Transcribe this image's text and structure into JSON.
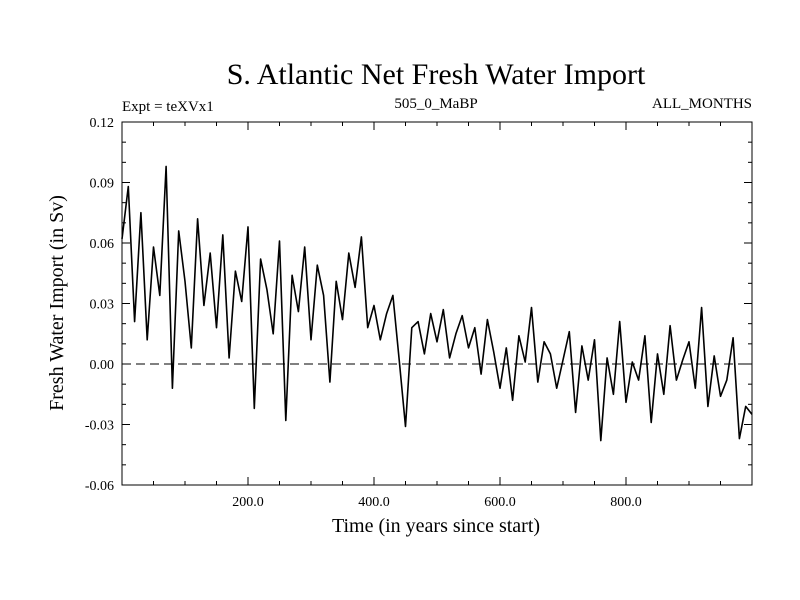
{
  "chart_data": {
    "type": "line",
    "title": "S. Atlantic Net Fresh Water Import",
    "subtitle_left": "Expt = teXVx1",
    "subtitle_center": "505_0_MaBP",
    "subtitle_right": "ALL_MONTHS",
    "xlabel": "Time (in years since start)",
    "ylabel": "Fresh Water Import (in Sv)",
    "xlim": [
      0,
      1000
    ],
    "ylim": [
      -0.06,
      0.12
    ],
    "xticks": [
      {
        "value": 200,
        "label": "200.0"
      },
      {
        "value": 400,
        "label": "400.0"
      },
      {
        "value": 600,
        "label": "600.0"
      },
      {
        "value": 800,
        "label": "800.0"
      }
    ],
    "yticks": [
      {
        "value": -0.06,
        "label": "-0.06"
      },
      {
        "value": -0.03,
        "label": "-0.03"
      },
      {
        "value": 0.0,
        "label": "0.00"
      },
      {
        "value": 0.03,
        "label": "0.03"
      },
      {
        "value": 0.06,
        "label": "0.06"
      },
      {
        "value": 0.09,
        "label": "0.09"
      },
      {
        "value": 0.12,
        "label": "0.12"
      }
    ],
    "reference_line": {
      "y": 0.0,
      "style": "dashed"
    },
    "series": [
      {
        "name": "Net Fresh Water Import",
        "color": "#000000",
        "x": [
          0,
          10,
          20,
          30,
          40,
          50,
          60,
          70,
          80,
          90,
          100,
          110,
          120,
          130,
          140,
          150,
          160,
          170,
          180,
          190,
          200,
          210,
          220,
          230,
          240,
          250,
          260,
          270,
          280,
          290,
          300,
          310,
          320,
          330,
          340,
          350,
          360,
          370,
          380,
          390,
          400,
          410,
          420,
          430,
          440,
          450,
          460,
          470,
          480,
          490,
          500,
          510,
          520,
          530,
          540,
          550,
          560,
          570,
          580,
          590,
          600,
          610,
          620,
          630,
          640,
          650,
          660,
          670,
          680,
          690,
          700,
          710,
          720,
          730,
          740,
          750,
          760,
          770,
          780,
          790,
          800,
          810,
          820,
          830,
          840,
          850,
          860,
          870,
          880,
          890,
          900,
          910,
          920,
          930,
          940,
          950,
          960,
          970,
          980,
          990,
          1000
        ],
        "values": [
          0.062,
          0.088,
          0.021,
          0.075,
          0.012,
          0.058,
          0.034,
          0.098,
          -0.012,
          0.066,
          0.041,
          0.008,
          0.072,
          0.029,
          0.055,
          0.018,
          0.064,
          0.003,
          0.046,
          0.031,
          0.068,
          -0.022,
          0.052,
          0.037,
          0.015,
          0.061,
          -0.028,
          0.044,
          0.026,
          0.058,
          0.012,
          0.049,
          0.034,
          -0.009,
          0.041,
          0.022,
          0.055,
          0.038,
          0.063,
          0.018,
          0.029,
          0.012,
          0.025,
          0.034,
          0.002,
          -0.031,
          0.018,
          0.021,
          0.005,
          0.025,
          0.011,
          0.027,
          0.003,
          0.015,
          0.024,
          0.008,
          0.018,
          -0.005,
          0.022,
          0.006,
          -0.012,
          0.008,
          -0.018,
          0.014,
          0.001,
          0.028,
          -0.009,
          0.011,
          0.005,
          -0.012,
          0.002,
          0.016,
          -0.024,
          0.009,
          -0.008,
          0.012,
          -0.038,
          0.003,
          -0.015,
          0.021,
          -0.019,
          0.001,
          -0.008,
          0.014,
          -0.029,
          0.005,
          -0.015,
          0.019,
          -0.008,
          0.002,
          0.011,
          -0.012,
          0.028,
          -0.021,
          0.004,
          -0.016,
          -0.008,
          0.013,
          -0.037,
          -0.021,
          -0.025
        ]
      }
    ]
  }
}
